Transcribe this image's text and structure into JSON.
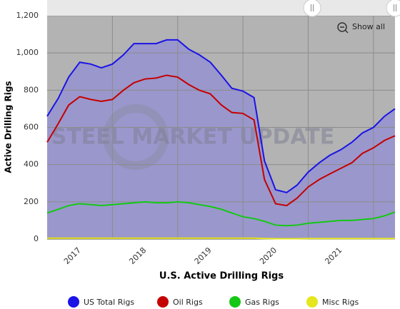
{
  "chart_data": {
    "type": "area-line",
    "title": "U.S. Active Drilling Rigs",
    "y_label": "Active Drilling Rigs",
    "watermark": "STEEL MARKET UPDATE",
    "button": "Show all",
    "x": [
      2017.0,
      2017.17,
      2017.33,
      2017.5,
      2017.67,
      2017.83,
      2018.0,
      2018.17,
      2018.33,
      2018.5,
      2018.67,
      2018.83,
      2019.0,
      2019.17,
      2019.33,
      2019.5,
      2019.67,
      2019.83,
      2020.0,
      2020.17,
      2020.33,
      2020.5,
      2020.67,
      2020.83,
      2021.0,
      2021.17,
      2021.33,
      2021.5,
      2021.67,
      2021.83,
      2022.0,
      2022.17,
      2022.33
    ],
    "series": [
      {
        "name": "US Total Rigs",
        "color": "#1a14e6",
        "fill": "#9a97cc",
        "values": [
          660,
          756,
          870,
          950,
          940,
          920,
          940,
          990,
          1050,
          1050,
          1050,
          1070,
          1070,
          1020,
          990,
          950,
          880,
          810,
          795,
          760,
          420,
          265,
          250,
          290,
          360,
          410,
          450,
          480,
          520,
          570,
          600,
          660,
          700
        ]
      },
      {
        "name": "Oil Rigs",
        "color": "#c40000",
        "values": [
          520,
          620,
          720,
          765,
          750,
          740,
          750,
          800,
          840,
          860,
          865,
          880,
          870,
          830,
          800,
          780,
          720,
          680,
          675,
          640,
          320,
          190,
          180,
          220,
          280,
          320,
          350,
          380,
          410,
          460,
          490,
          530,
          555
        ]
      },
      {
        "name": "Gas Rigs",
        "color": "#14c814",
        "values": [
          140,
          160,
          180,
          190,
          185,
          180,
          185,
          190,
          195,
          200,
          195,
          195,
          200,
          195,
          185,
          175,
          160,
          140,
          120,
          110,
          95,
          75,
          72,
          75,
          85,
          90,
          95,
          100,
          100,
          105,
          110,
          125,
          145
        ]
      },
      {
        "name": "Misc Rigs",
        "color": "#e6e61e",
        "values": [
          5,
          5,
          5,
          5,
          5,
          5,
          5,
          5,
          5,
          5,
          5,
          5,
          5,
          5,
          5,
          5,
          5,
          5,
          5,
          5,
          3,
          2,
          2,
          2,
          3,
          3,
          3,
          3,
          3,
          3,
          3,
          3,
          3
        ]
      }
    ],
    "xlim": [
      2017.0,
      2022.33
    ],
    "xticks": [
      {
        "value": 2017.5,
        "label": "2017"
      },
      {
        "value": 2018.5,
        "label": "2018"
      },
      {
        "value": 2019.5,
        "label": "2019"
      },
      {
        "value": 2020.5,
        "label": "2020"
      },
      {
        "value": 2021.5,
        "label": "2021"
      }
    ],
    "xgrid": [
      2018,
      2019,
      2020,
      2021,
      2022
    ],
    "ylim": [
      0,
      1200
    ],
    "yticks": [
      0,
      200,
      400,
      600,
      800,
      {
        "value": 1000,
        "label": "1,000"
      },
      {
        "value": 1200,
        "label": "1,200"
      }
    ],
    "grid": true
  }
}
